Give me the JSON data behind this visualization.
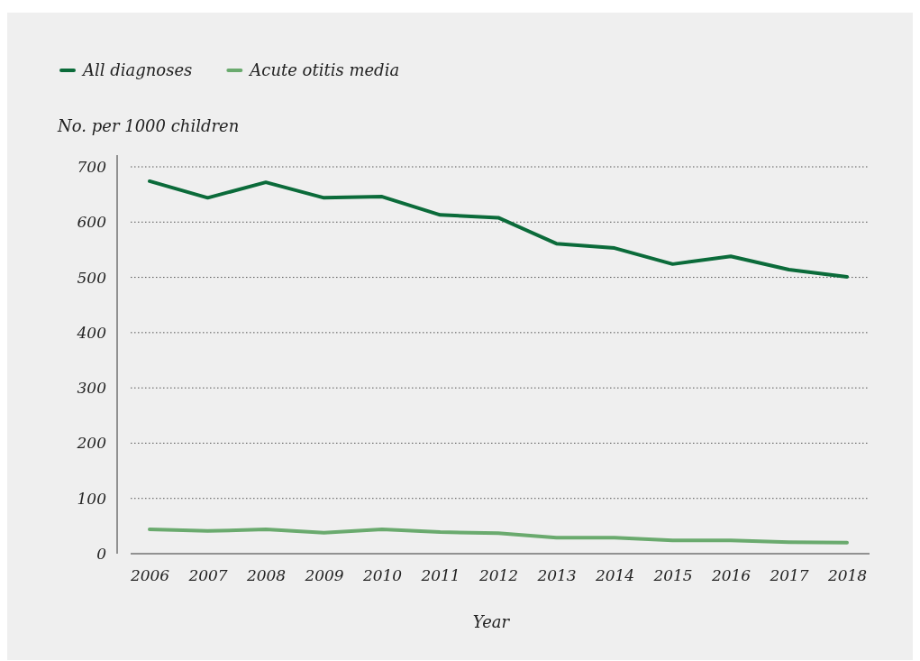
{
  "chart_data": {
    "type": "line",
    "xlabel": "Year",
    "ylabel": "No. per 1000 children",
    "categories": [
      "2006",
      "2007",
      "2008",
      "2009",
      "2010",
      "2011",
      "2012",
      "2013",
      "2014",
      "2015",
      "2016",
      "2017",
      "2018"
    ],
    "series": [
      {
        "name": "All diagnoses",
        "color": "#0b6b3a",
        "values": [
          674,
          644,
          672,
          644,
          646,
          613,
          608,
          561,
          553,
          524,
          538,
          514,
          501
        ]
      },
      {
        "name": "Acute otitis media",
        "color": "#6aaa6e",
        "values": [
          44,
          41,
          44,
          38,
          44,
          39,
          37,
          29,
          29,
          24,
          24,
          21,
          20
        ]
      }
    ],
    "ylim": [
      0,
      700
    ],
    "yticks": [
      0,
      100,
      200,
      300,
      400,
      500,
      600,
      700
    ],
    "grid": "y",
    "legend": "top left",
    "marker": "none",
    "line_style": "solid"
  }
}
